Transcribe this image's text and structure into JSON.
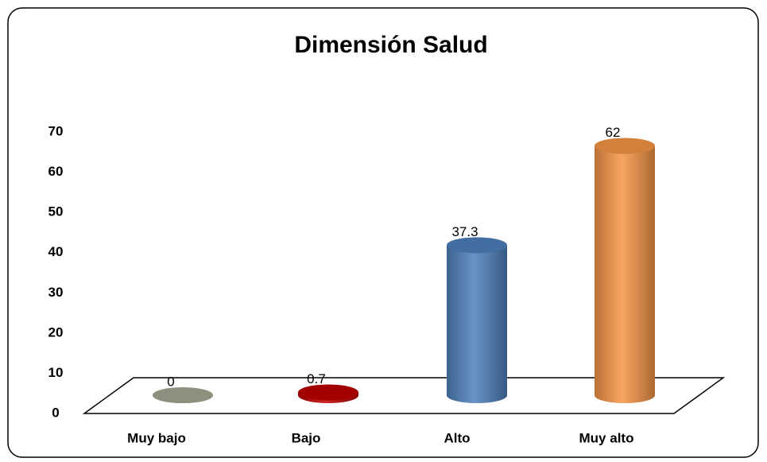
{
  "chart_data": {
    "type": "bar",
    "title": "Dimensión Salud",
    "categories": [
      "Muy bajo",
      "Bajo",
      "Alto",
      "Muy alto"
    ],
    "values": [
      0,
      0.7,
      37.3,
      62
    ],
    "colors": [
      "#a8a893",
      "#c00000",
      "#4f81bd",
      "#f79646"
    ],
    "ylim": [
      0,
      70
    ],
    "yticks": [
      0,
      10,
      20,
      30,
      40,
      50,
      60,
      70
    ],
    "grid": false
  }
}
